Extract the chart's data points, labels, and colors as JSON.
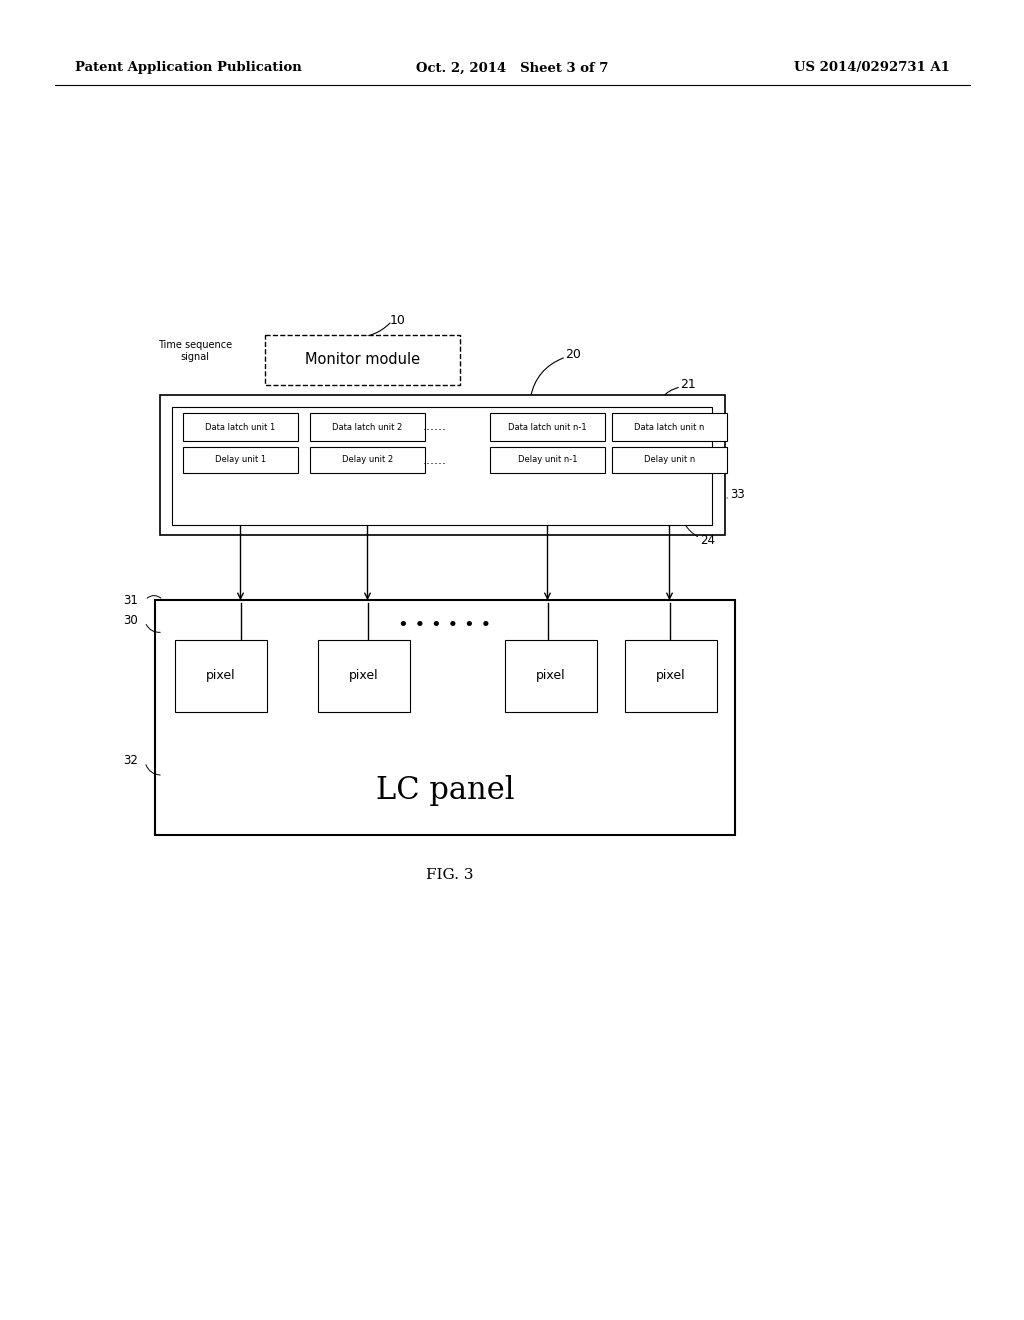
{
  "bg_color": "#ffffff",
  "header_left": "Patent Application Publication",
  "header_center": "Oct. 2, 2014   Sheet 3 of 7",
  "header_right": "US 2014/0292731 A1",
  "fig_label": "FIG. 3",
  "monitor_label": "Monitor module",
  "time_seq_label": "Time sequence\nsignal",
  "lc_panel_label": "LC panel",
  "data_latch_labels": [
    "Data latch unit 1",
    "Data latch unit 2",
    "Data latch unit n-1",
    "Data latch unit n"
  ],
  "delay_labels": [
    "Delay unit 1",
    "Delay unit 2",
    "Delay unit n-1",
    "Delay unit n"
  ],
  "pixel_label": "pixel",
  "ref_10": "10",
  "ref_20": "20",
  "ref_21": "21",
  "ref_24": "24",
  "ref_33": "33",
  "ref_30": "30",
  "ref_31": "31",
  "ref_32": "32"
}
